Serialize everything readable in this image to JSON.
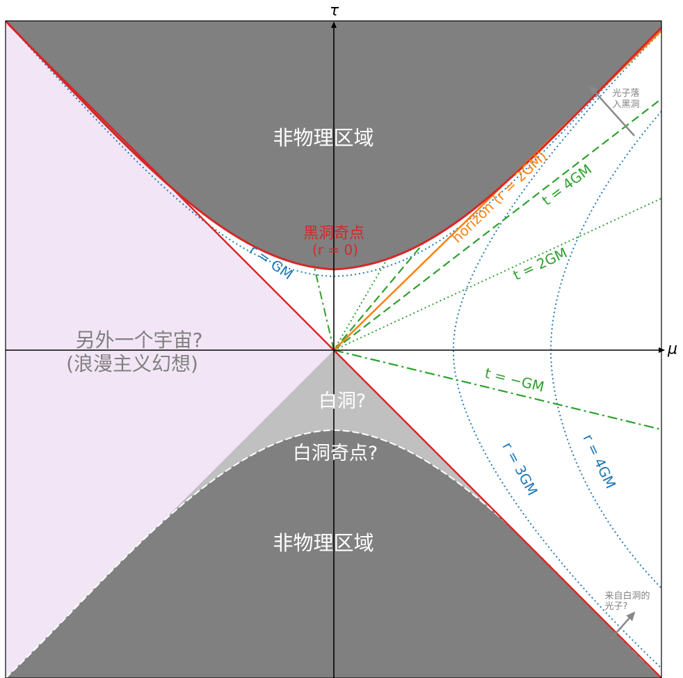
{
  "axes": {
    "tau_label": "τ",
    "mu_label": "μ"
  },
  "regions": {
    "upper_unphysical": "非物理区域",
    "lower_unphysical": "非物理区域",
    "other_universe_line1": "另外一个宇宙?",
    "other_universe_line2": "(浪漫主义幻想)",
    "white_hole": "白洞?",
    "white_hole_singularity": "白洞奇点?",
    "black_hole_singularity_line1": "黑洞奇点",
    "black_hole_singularity_line2": "(r = 0)"
  },
  "curve_labels": {
    "horizon": "horizon (r = 2GM)",
    "t4": "t = 4GM",
    "t2": "t = 2GM",
    "tneg": "t = −GM",
    "r1": "r = GM",
    "r3": "r = 3GM",
    "r4": "r = 4GM"
  },
  "annotations": {
    "photon_in_line1": "光子落",
    "photon_in_line2": "入黑洞",
    "photon_out_line1": "来自白洞的",
    "photon_out_line2": "光子?"
  },
  "colors": {
    "red": "#d62728",
    "orange": "#ff7f0e",
    "green": "#2ca02c",
    "blue": "#1f77b4",
    "dark_gray": "#808080",
    "light_gray": "#c0c0c0",
    "lavender": "#f2e6f6",
    "arrow_gray": "#888888"
  }
}
